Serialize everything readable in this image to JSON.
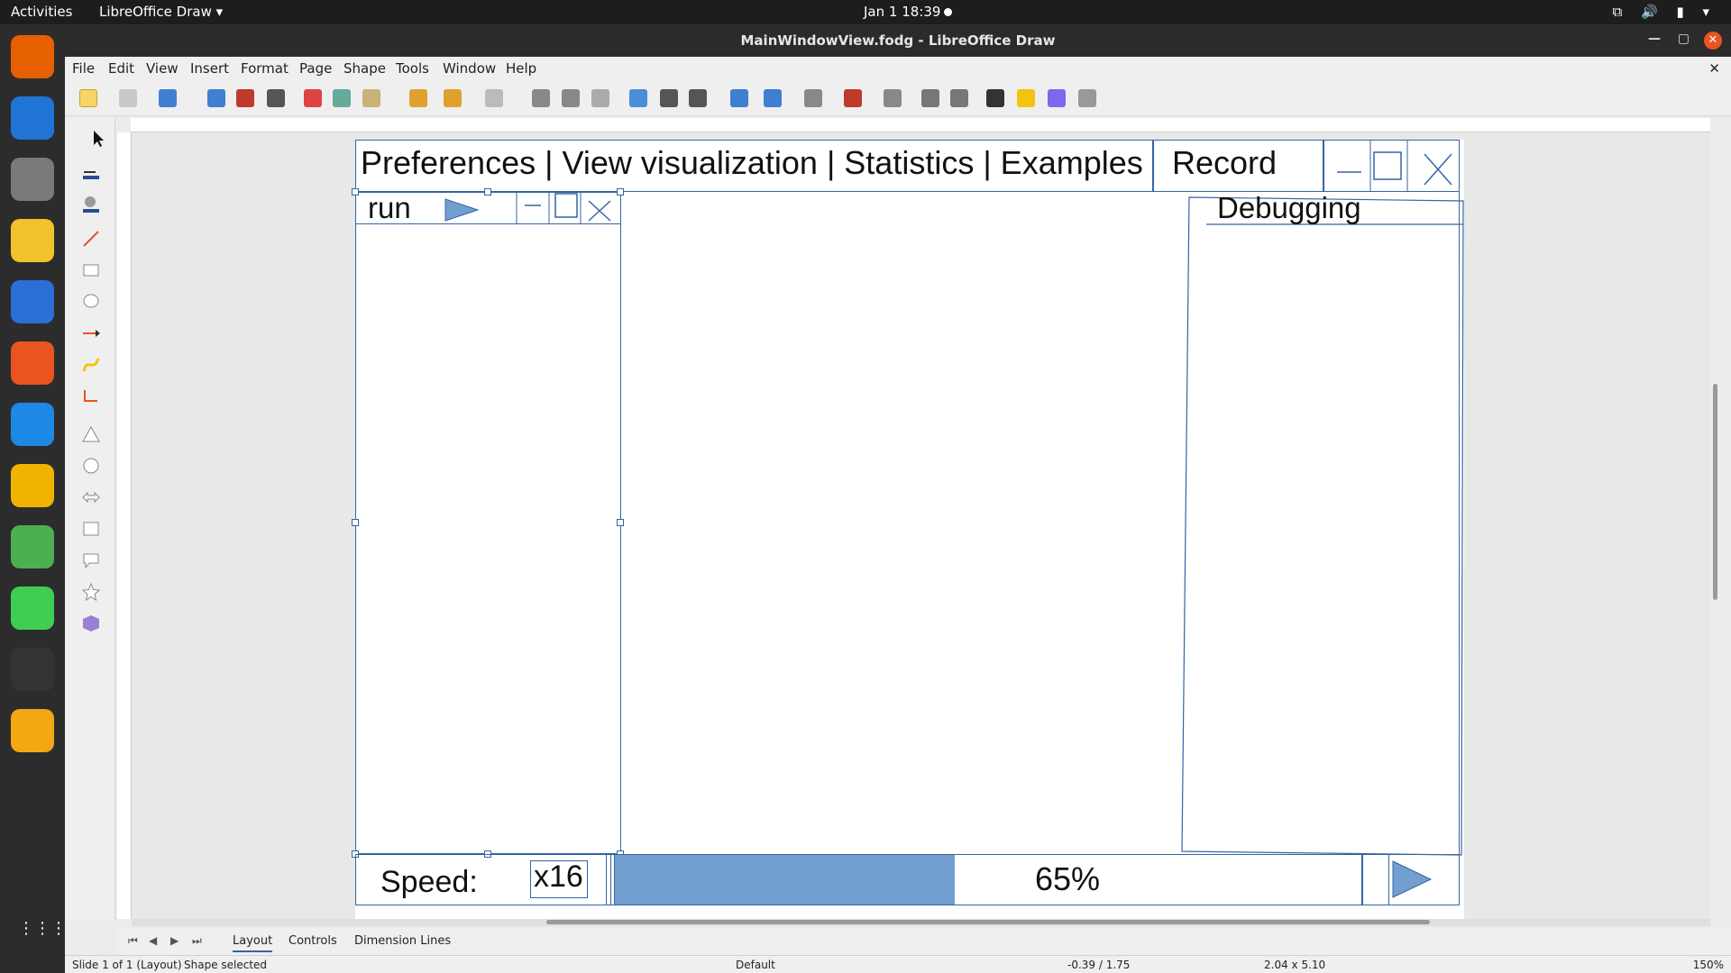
{
  "topbar": {
    "activities": "Activities",
    "app_menu": "LibreOffice Draw ▾",
    "clock": "Jan 1  18:39",
    "tray": "⧉ 🔊 ▮ ▾"
  },
  "window": {
    "title": "MainWindowView.fodg - LibreOffice Draw",
    "minimize": "—",
    "maximize": "▢",
    "close": "✕"
  },
  "menu": {
    "items": [
      "File",
      "Edit",
      "View",
      "Insert",
      "Format",
      "Page",
      "Shape",
      "Tools",
      "Window",
      "Help"
    ],
    "close_doc": "✕"
  },
  "dock": {
    "apps": [
      {
        "name": "firefox",
        "color": "#e66000"
      },
      {
        "name": "thunderbird",
        "color": "#1f74d6"
      },
      {
        "name": "files",
        "color": "#7a7a7a"
      },
      {
        "name": "rhythmbox",
        "color": "#f2c12e"
      },
      {
        "name": "writer",
        "color": "#2a6fd6"
      },
      {
        "name": "app-center",
        "color": "#e95420"
      },
      {
        "name": "help",
        "color": "#1e88e5"
      },
      {
        "name": "teapot",
        "color": "#f0b400"
      },
      {
        "name": "chrome",
        "color": "#4caf50"
      },
      {
        "name": "qt-creator",
        "color": "#41cd52"
      },
      {
        "name": "terminal",
        "color": "#333333"
      },
      {
        "name": "draw",
        "color": "#f3a712"
      }
    ],
    "grid_icon": "⋮⋮⋮"
  },
  "mockup": {
    "header": "Preferences | View visualization | Statistics | Examples",
    "record": "Record",
    "run": "run",
    "debugging": "Debugging",
    "speed_label": "Speed:",
    "speed_value": "x16",
    "progress": 65,
    "progress_label": "65%",
    "progress_color": "#729fcf"
  },
  "tabs": {
    "items": [
      "Layout",
      "Controls",
      "Dimension Lines"
    ]
  },
  "status": {
    "slide": "Slide 1 of 1 (Layout)",
    "selection": "Shape selected",
    "style": "Default",
    "position": "-0.39 / 1.75",
    "size": "2.04 x 5.10",
    "zoom": "150%"
  }
}
